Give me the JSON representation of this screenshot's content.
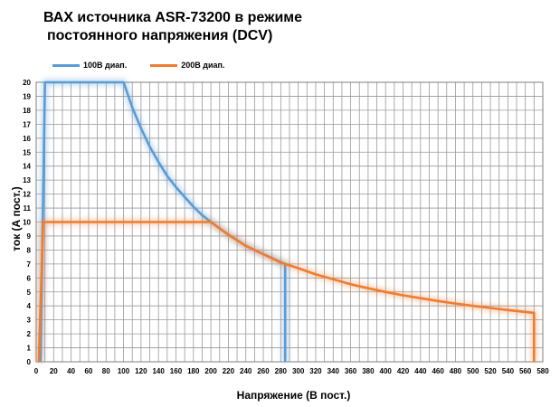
{
  "chart_data": {
    "type": "line",
    "title_line1": "ВАХ источника ASR-73200 в режиме",
    "title_line2": "постоянного напряжения (DCV)",
    "xlabel": "Напряжение (В пост.)",
    "ylabel": "ток (А пост.)",
    "xlim": [
      0,
      580
    ],
    "ylim": [
      0,
      20
    ],
    "x_ticks": [
      0,
      20,
      40,
      60,
      80,
      100,
      120,
      140,
      160,
      180,
      200,
      220,
      240,
      260,
      280,
      300,
      320,
      340,
      360,
      380,
      400,
      420,
      440,
      460,
      480,
      500,
      520,
      540,
      560,
      580
    ],
    "y_ticks": [
      0,
      1,
      2,
      3,
      4,
      5,
      6,
      7,
      8,
      9,
      10,
      11,
      12,
      13,
      14,
      15,
      16,
      17,
      18,
      19,
      20
    ],
    "grid": true,
    "legend_position": "top-left",
    "series": [
      {
        "name": "100В диап.",
        "color": "#5b9bd5",
        "points": [
          [
            5,
            0
          ],
          [
            10,
            20
          ],
          [
            100,
            20
          ],
          [
            110,
            18.2
          ],
          [
            120,
            16.7
          ],
          [
            130,
            15.4
          ],
          [
            140,
            14.3
          ],
          [
            150,
            13.3
          ],
          [
            160,
            12.5
          ],
          [
            170,
            11.8
          ],
          [
            180,
            11.1
          ],
          [
            190,
            10.5
          ],
          [
            200,
            10
          ],
          [
            220,
            9.1
          ],
          [
            240,
            8.3
          ],
          [
            260,
            7.7
          ],
          [
            285,
            7
          ],
          [
            285,
            0
          ]
        ]
      },
      {
        "name": "200В диап.",
        "color": "#ed7d31",
        "points": [
          [
            3,
            0
          ],
          [
            8,
            10
          ],
          [
            200,
            10
          ],
          [
            220,
            9.1
          ],
          [
            240,
            8.3
          ],
          [
            260,
            7.7
          ],
          [
            280,
            7.1
          ],
          [
            300,
            6.7
          ],
          [
            320,
            6.25
          ],
          [
            340,
            5.9
          ],
          [
            360,
            5.55
          ],
          [
            380,
            5.26
          ],
          [
            400,
            5
          ],
          [
            420,
            4.76
          ],
          [
            440,
            4.55
          ],
          [
            460,
            4.35
          ],
          [
            480,
            4.17
          ],
          [
            500,
            4
          ],
          [
            520,
            3.85
          ],
          [
            540,
            3.7
          ],
          [
            570,
            3.5
          ],
          [
            570,
            0
          ]
        ]
      }
    ]
  }
}
